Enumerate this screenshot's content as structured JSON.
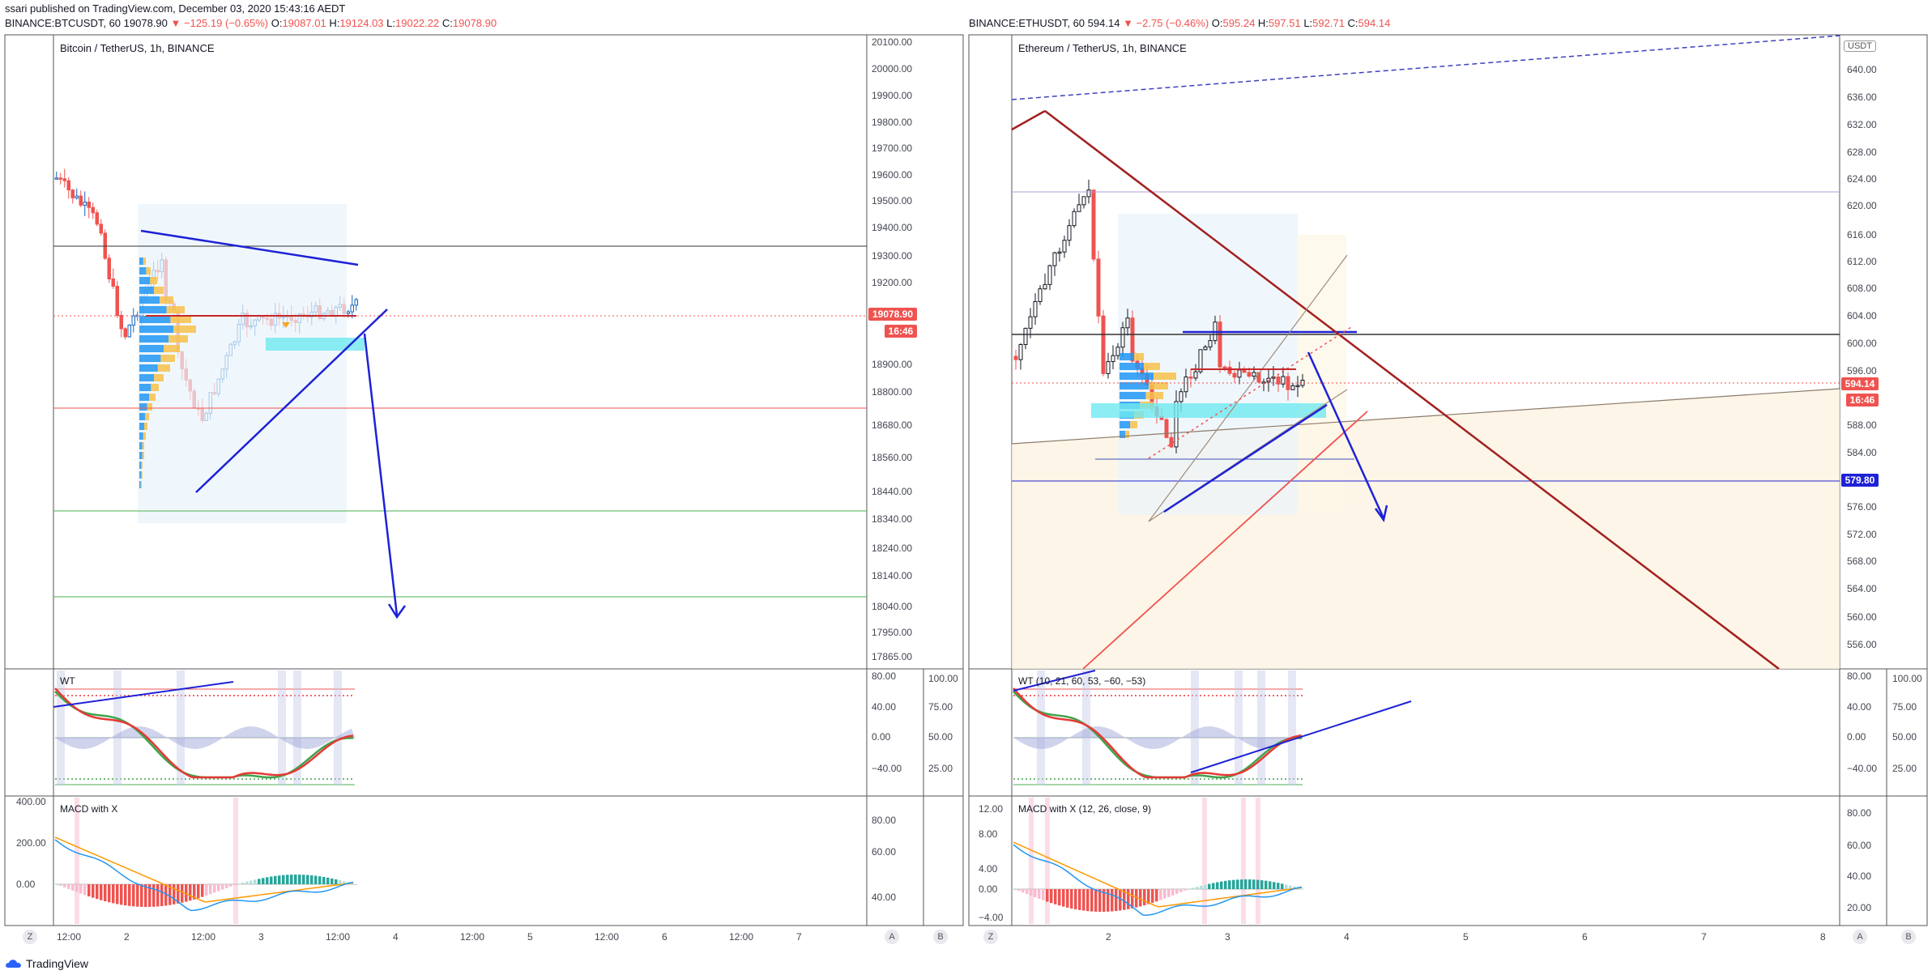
{
  "header": {
    "publisher_line": "ssari published on TradingView.com, December 03, 2020 15:43:16 AEDT"
  },
  "colors": {
    "up": "#26a69a",
    "down": "#ef5350",
    "blue_line": "#1e22d6",
    "dark_red": "#a31f1f",
    "wt_green": "#3fa34d",
    "wt_red": "#e53935",
    "macd_blue": "#2196f3",
    "macd_orange": "#ff9800"
  },
  "btc": {
    "symbol": "BINANCE:BTCUSDT, 60",
    "last": "19078.90",
    "change": "▼ −125.19 (−0.65%)",
    "o_label": "O:",
    "o": "19087.01",
    "h_label": "H:",
    "h": "19124.03",
    "l_label": "L:",
    "l": "19022.22",
    "c_label": "C:",
    "c": "19078.90",
    "pane_title": "Bitcoin / TetherUS, 1h, BINANCE",
    "price_axis": [
      "20100.00",
      "20000.00",
      "19900.00",
      "19800.00",
      "19700.00",
      "19600.00",
      "19500.00",
      "19400.00",
      "19300.00",
      "19200.00",
      "18900.00",
      "18800.00",
      "18680.00",
      "18560.00",
      "18440.00",
      "18340.00",
      "18240.00",
      "18140.00",
      "18040.00",
      "17950.00",
      "17865.00"
    ],
    "price_tag": "19078.90",
    "countdown_tag": "16:46",
    "wt_label": "WT",
    "wt_axis_left": [
      "80.00",
      "40.00",
      "0.00",
      "−40.00"
    ],
    "wt_axis_right": [
      "100.00",
      "75.00",
      "50.00",
      "25.00"
    ],
    "macd_label": "MACD with X",
    "macd_axis_left": [
      "400.00",
      "200.00",
      "0.00"
    ],
    "macd_axis_right": [
      "80.00",
      "60.00",
      "40.00"
    ],
    "time_axis": [
      "12:00",
      "2",
      "12:00",
      "3",
      "12:00",
      "4",
      "12:00",
      "5",
      "12:00",
      "6",
      "12:00",
      "7"
    ],
    "btn_z": "Z",
    "btn_a": "A",
    "btn_b": "B"
  },
  "eth": {
    "symbol": "BINANCE:ETHUSDT, 60",
    "last": "594.14",
    "change": "▼ −2.75 (−0.46%)",
    "o_label": "O:",
    "o": "595.24",
    "h_label": "H:",
    "h": "597.51",
    "l_label": "L:",
    "l": "592.71",
    "c_label": "C:",
    "c": "594.14",
    "pane_title": "Ethereum / TetherUS, 1h, BINANCE",
    "currency_badge": "USDT",
    "price_axis": [
      "640.00",
      "636.00",
      "632.00",
      "628.00",
      "624.00",
      "620.00",
      "616.00",
      "612.00",
      "608.00",
      "604.00",
      "600.00",
      "596.00",
      "588.00",
      "584.00",
      "576.00",
      "572.00",
      "568.00",
      "564.00",
      "560.00",
      "556.00"
    ],
    "price_tag": "594.14",
    "countdown_tag": "16:46",
    "level_tag": "579.80",
    "wt_label": "WT (10, 21, 60, 53, −60, −53)",
    "wt_axis_left": [
      "80.00",
      "40.00",
      "0.00",
      "−40.00"
    ],
    "wt_axis_right": [
      "100.00",
      "75.00",
      "50.00",
      "25.00"
    ],
    "macd_label": "MACD with X (12, 26, close, 9)",
    "macd_axis_left": [
      "12.00",
      "8.00",
      "4.00",
      "0.00",
      "−4.00"
    ],
    "macd_axis_right": [
      "80.00",
      "60.00",
      "40.00",
      "20.00"
    ],
    "time_axis": [
      "2",
      "3",
      "4",
      "5",
      "6",
      "7",
      "8"
    ],
    "btn_z": "Z",
    "btn_a": "A",
    "btn_b": "B"
  },
  "footer": {
    "brand": "TradingView"
  }
}
